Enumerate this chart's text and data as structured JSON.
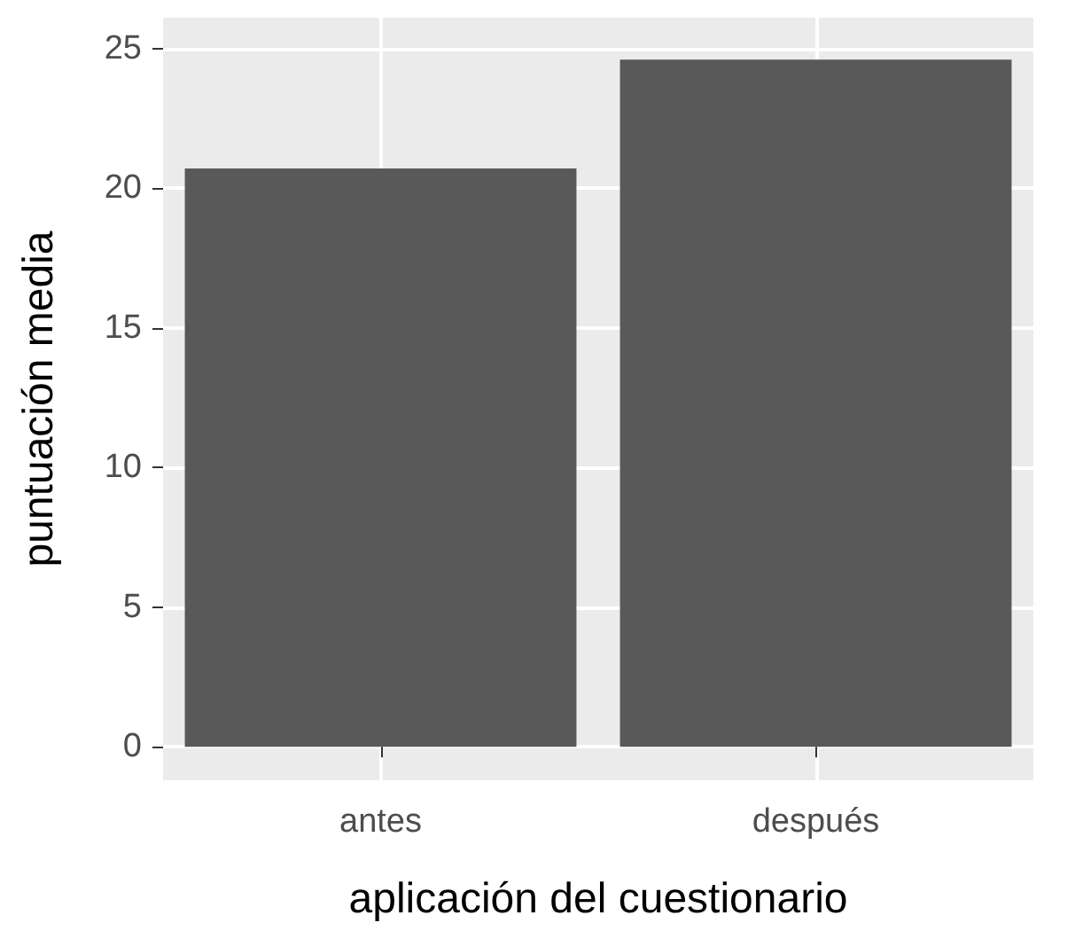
{
  "chart_data": {
    "type": "bar",
    "xlabel": "aplicación del cuestionario",
    "ylabel": "puntuación media",
    "categories": [
      "antes",
      "después"
    ],
    "values": [
      20.7,
      24.6
    ],
    "color": "#595959",
    "ylim": [
      -1.2,
      26.1
    ],
    "yticks": [
      0,
      5,
      10,
      15,
      20,
      25
    ],
    "grid": true
  }
}
